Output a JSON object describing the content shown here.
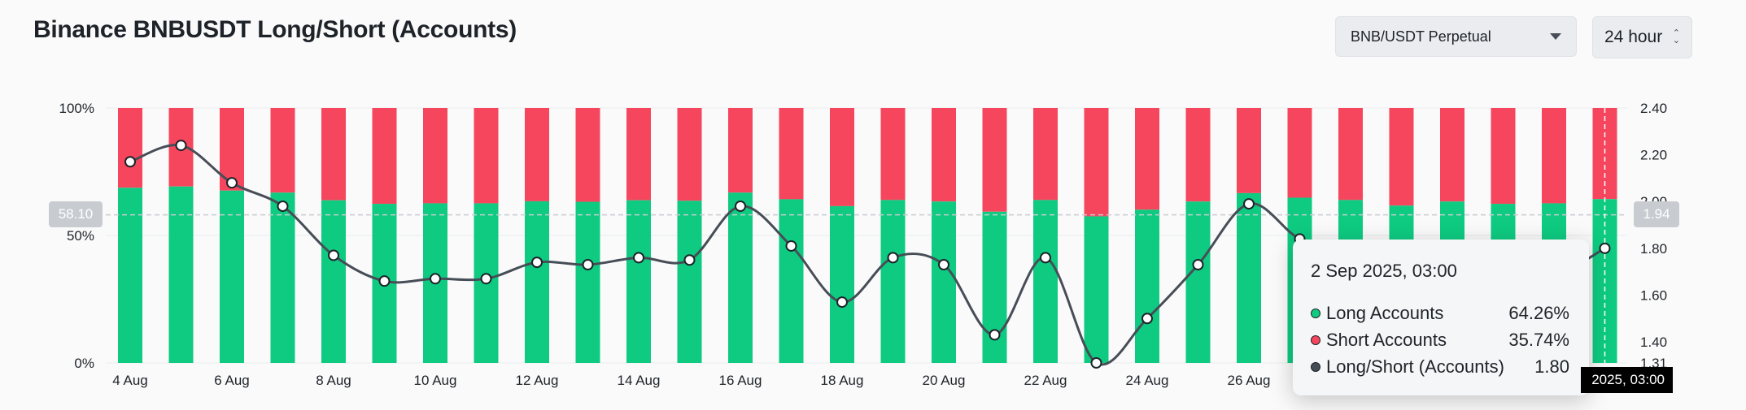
{
  "header": {
    "title": "Binance BNBUSDT Long/Short (Accounts)",
    "symbol_select": "BNB/USDT Perpetual",
    "period_select": "24 hour"
  },
  "tooltip": {
    "title": "2 Sep 2025, 03:00",
    "rows": [
      {
        "label": "Long Accounts",
        "value": "64.26%",
        "color": "#0ecb81"
      },
      {
        "label": "Short Accounts",
        "value": "35.74%",
        "color": "#f6465d"
      },
      {
        "label": "Long/Short (Accounts)",
        "value": "1.80",
        "color": "#474d57"
      }
    ]
  },
  "crosshair": {
    "left_value": "58.10",
    "right_value": "1.94",
    "x_label": "2025, 03:00"
  },
  "chart_data": {
    "type": "bar",
    "stacked": true,
    "x": [
      "4 Aug",
      "5 Aug",
      "6 Aug",
      "7 Aug",
      "8 Aug",
      "9 Aug",
      "10 Aug",
      "11 Aug",
      "12 Aug",
      "13 Aug",
      "14 Aug",
      "15 Aug",
      "16 Aug",
      "17 Aug",
      "18 Aug",
      "19 Aug",
      "20 Aug",
      "21 Aug",
      "22 Aug",
      "23 Aug",
      "24 Aug",
      "25 Aug",
      "26 Aug",
      "27 Aug",
      "28 Aug",
      "29 Aug",
      "30 Aug",
      "31 Aug",
      "1 Sep",
      "2 Sep"
    ],
    "x_tick_labels": [
      "4 Aug",
      "6 Aug",
      "8 Aug",
      "10 Aug",
      "12 Aug",
      "14 Aug",
      "16 Aug",
      "18 Aug",
      "20 Aug",
      "22 Aug",
      "24 Aug",
      "26 Aug"
    ],
    "series": [
      {
        "name": "Long Accounts",
        "color": "#0ecb81",
        "axis": "left",
        "values": [
          68.7,
          69.2,
          67.6,
          66.8,
          63.8,
          62.4,
          62.6,
          62.6,
          63.4,
          63.2,
          63.8,
          63.6,
          66.8,
          64.2,
          61.5,
          63.9,
          63.3,
          59.3,
          63.9,
          57.5,
          60.1,
          63.3,
          66.6,
          64.8,
          63.9,
          61.7,
          63.3,
          62.4,
          62.6,
          64.26
        ]
      },
      {
        "name": "Short Accounts",
        "color": "#f6465d",
        "axis": "left",
        "values": [
          31.3,
          30.8,
          32.4,
          33.2,
          36.2,
          37.6,
          37.4,
          37.4,
          36.6,
          36.8,
          36.2,
          36.4,
          33.2,
          35.8,
          38.5,
          36.1,
          36.7,
          40.7,
          36.1,
          42.5,
          39.9,
          36.7,
          33.4,
          35.2,
          36.1,
          38.3,
          36.7,
          37.6,
          37.4,
          35.74
        ]
      },
      {
        "name": "Long/Short (Accounts)",
        "type": "line",
        "color": "#474d57",
        "axis": "right",
        "values": [
          2.17,
          2.24,
          2.08,
          1.98,
          1.77,
          1.66,
          1.67,
          1.67,
          1.74,
          1.73,
          1.76,
          1.75,
          1.98,
          1.81,
          1.57,
          1.76,
          1.73,
          1.43,
          1.76,
          1.31,
          1.5,
          1.73,
          1.99,
          1.84,
          1.78,
          1.63,
          1.72,
          1.66,
          1.68,
          1.8
        ]
      }
    ],
    "ylim_left": [
      0,
      100
    ],
    "yticks_left": [
      "0%",
      "50%",
      "100%"
    ],
    "ylim_right": [
      1.31,
      2.4
    ],
    "yticks_right": [
      "1.31",
      "1.40",
      "1.60",
      "1.80",
      "2.00",
      "2.20",
      "2.40"
    ],
    "grid": true
  }
}
